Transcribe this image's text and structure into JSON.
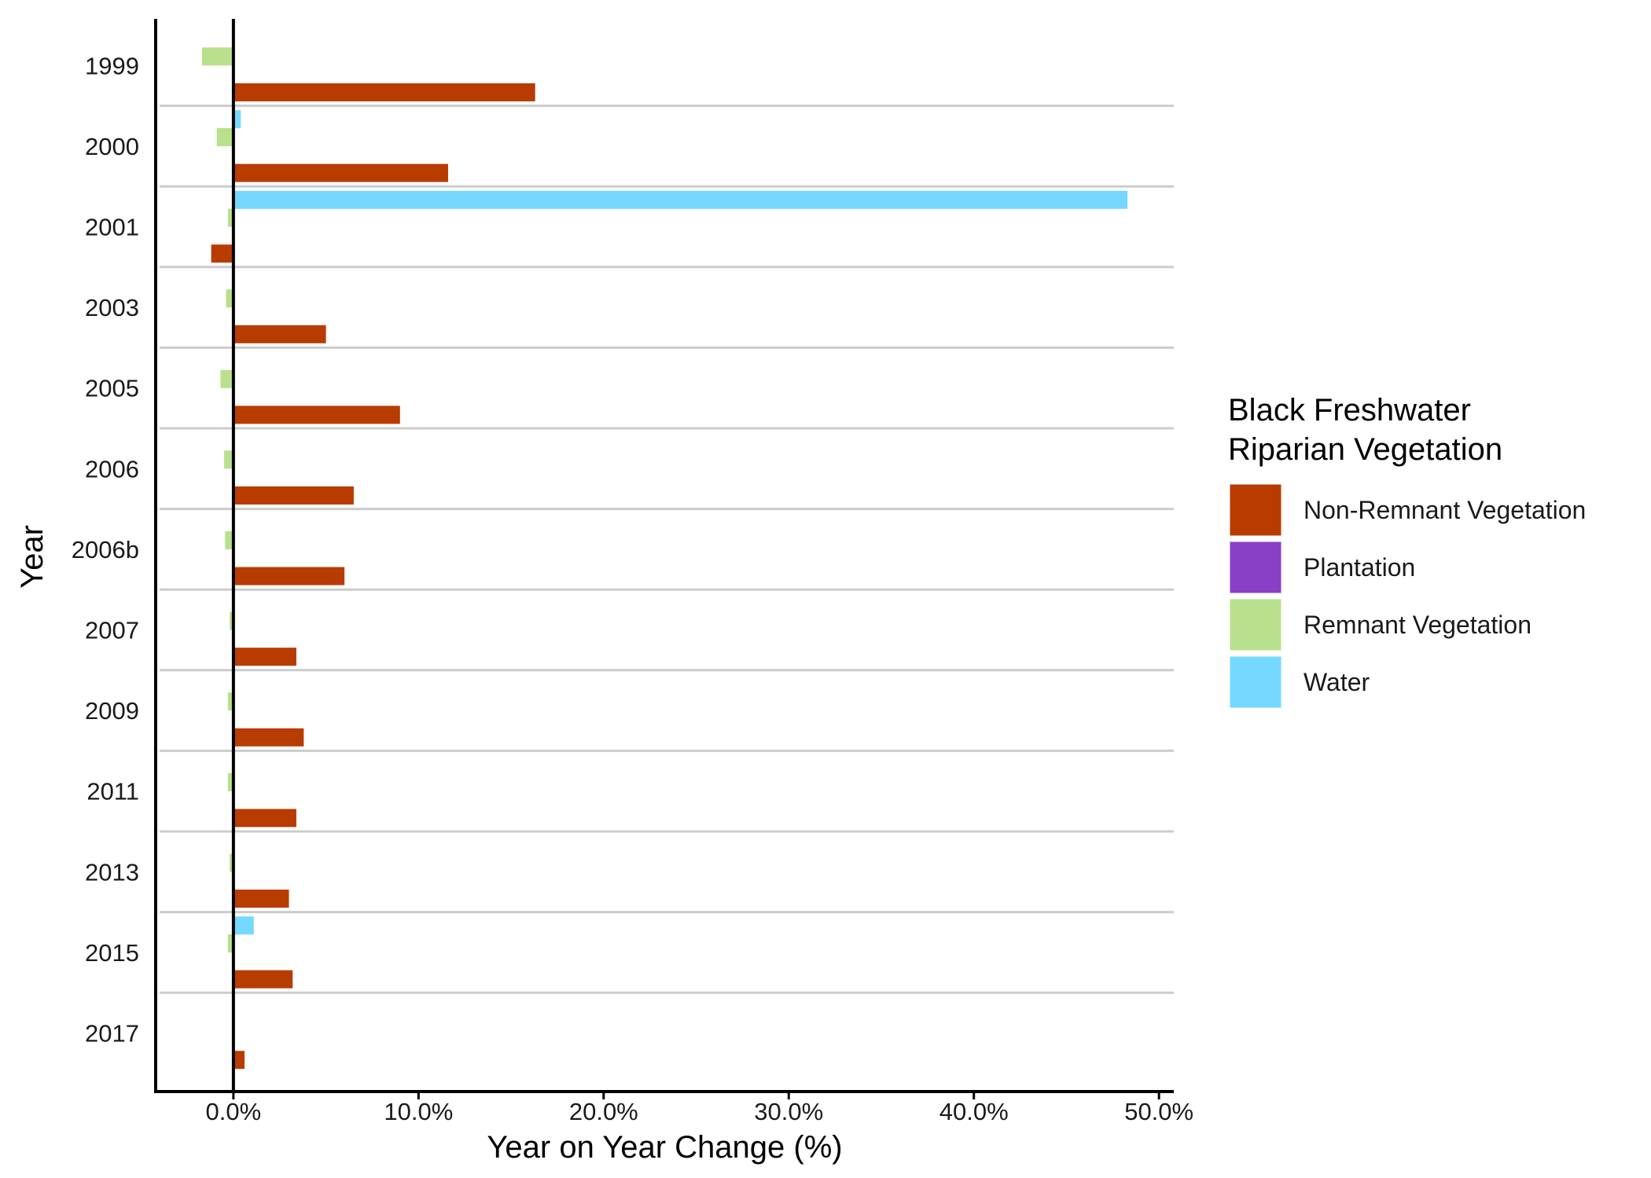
{
  "chart_data": {
    "type": "bar",
    "orientation": "horizontal",
    "title": "",
    "xlabel": "Year on Year Change (%)",
    "ylabel": "Year",
    "xlim": [
      -4.2,
      50.8
    ],
    "x_ticks": [
      0,
      10,
      20,
      30,
      40,
      50
    ],
    "x_tick_labels": [
      "0.0%",
      "10.0%",
      "20.0%",
      "30.0%",
      "40.0%",
      "50.0%"
    ],
    "categories": [
      "1999",
      "2000",
      "2001",
      "2003",
      "2005",
      "2006",
      "2006b",
      "2007",
      "2009",
      "2011",
      "2013",
      "2015",
      "2017"
    ],
    "series": [
      {
        "name": "Non-Remnant Vegetation",
        "color": "#B83C00",
        "values": [
          16.3,
          11.6,
          -1.2,
          5.0,
          9.0,
          6.5,
          6.0,
          3.4,
          3.8,
          3.4,
          3.0,
          3.2,
          0.6
        ]
      },
      {
        "name": "Plantation",
        "color": "#8A3FC7",
        "values": [
          null,
          null,
          null,
          null,
          null,
          null,
          null,
          null,
          null,
          null,
          null,
          null,
          null
        ]
      },
      {
        "name": "Remnant Vegetation",
        "color": "#B9E08C",
        "values": [
          -1.7,
          -0.9,
          -0.3,
          -0.4,
          -0.7,
          -0.5,
          -0.45,
          -0.2,
          -0.3,
          -0.3,
          -0.2,
          -0.3,
          null
        ]
      },
      {
        "name": "Water",
        "color": "#74D8FF",
        "values": [
          null,
          0.4,
          48.3,
          null,
          null,
          null,
          null,
          null,
          null,
          null,
          null,
          1.1,
          null
        ]
      }
    ],
    "legend": {
      "title": "Black Freshwater Riparian Vegetation",
      "title_lines": [
        "Black Freshwater",
        "Riparian Vegetation"
      ],
      "position": "right"
    },
    "grid": "horizontal separators between years"
  }
}
